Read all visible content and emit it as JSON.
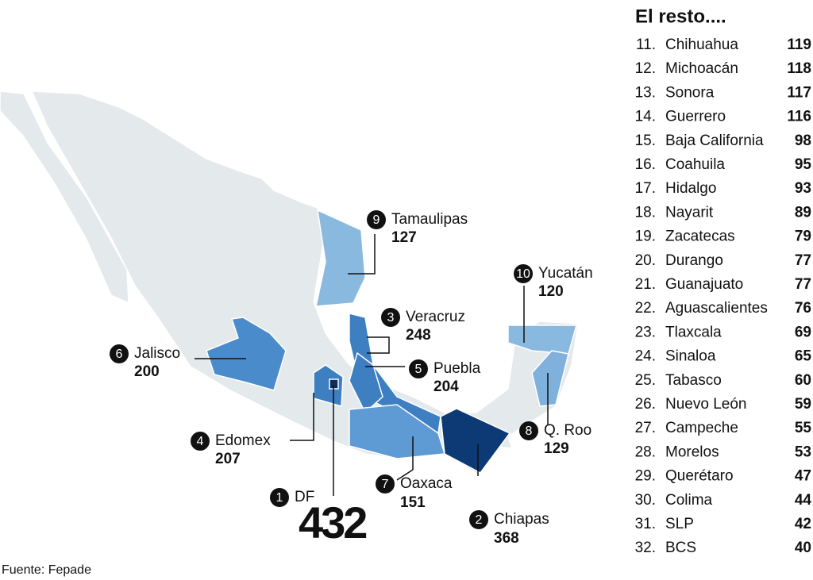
{
  "map": {
    "states": [
      {
        "rank": "1",
        "name": "DF",
        "value": "432"
      },
      {
        "rank": "2",
        "name": "Chiapas",
        "value": "368"
      },
      {
        "rank": "3",
        "name": "Veracruz",
        "value": "248"
      },
      {
        "rank": "4",
        "name": "Edomex",
        "value": "207"
      },
      {
        "rank": "5",
        "name": "Puebla",
        "value": "204"
      },
      {
        "rank": "6",
        "name": "Jalisco",
        "value": "200"
      },
      {
        "rank": "7",
        "name": "Oaxaca",
        "value": "151"
      },
      {
        "rank": "8",
        "name": "Q. Roo",
        "value": "129"
      },
      {
        "rank": "9",
        "name": "Tamaulipas",
        "value": "127"
      },
      {
        "rank": "10",
        "name": "Yucatán",
        "value": "120"
      }
    ]
  },
  "rest": {
    "title": "El resto....",
    "rows": [
      {
        "rank": "11.",
        "name": "Chihuahua",
        "value": "119"
      },
      {
        "rank": "12.",
        "name": "Michoacán",
        "value": "118"
      },
      {
        "rank": "13.",
        "name": "Sonora",
        "value": "117"
      },
      {
        "rank": "14.",
        "name": "Guerrero",
        "value": "116"
      },
      {
        "rank": "15.",
        "name": "Baja California",
        "value": "98"
      },
      {
        "rank": "16.",
        "name": "Coahuila",
        "value": "95"
      },
      {
        "rank": "17.",
        "name": "Hidalgo",
        "value": "93"
      },
      {
        "rank": "18.",
        "name": "Nayarit",
        "value": "89"
      },
      {
        "rank": "19.",
        "name": "Zacatecas",
        "value": "79"
      },
      {
        "rank": "20.",
        "name": "Durango",
        "value": "77"
      },
      {
        "rank": "21.",
        "name": "Guanajuato",
        "value": "77"
      },
      {
        "rank": "22.",
        "name": "Aguascalientes",
        "value": "76"
      },
      {
        "rank": "23.",
        "name": "Tlaxcala",
        "value": "69"
      },
      {
        "rank": "24.",
        "name": "Sinaloa",
        "value": "65"
      },
      {
        "rank": "25.",
        "name": "Tabasco",
        "value": "60"
      },
      {
        "rank": "26.",
        "name": "Nuevo León",
        "value": "59"
      },
      {
        "rank": "27.",
        "name": "Campeche",
        "value": "55"
      },
      {
        "rank": "28.",
        "name": "Morelos",
        "value": "53"
      },
      {
        "rank": "29.",
        "name": "Querétaro",
        "value": "47"
      },
      {
        "rank": "30.",
        "name": "Colima",
        "value": "44"
      },
      {
        "rank": "31.",
        "name": "SLP",
        "value": "42"
      },
      {
        "rank": "32.",
        "name": "BCS",
        "value": "40"
      }
    ]
  },
  "source": "Fuente: Fepade"
}
